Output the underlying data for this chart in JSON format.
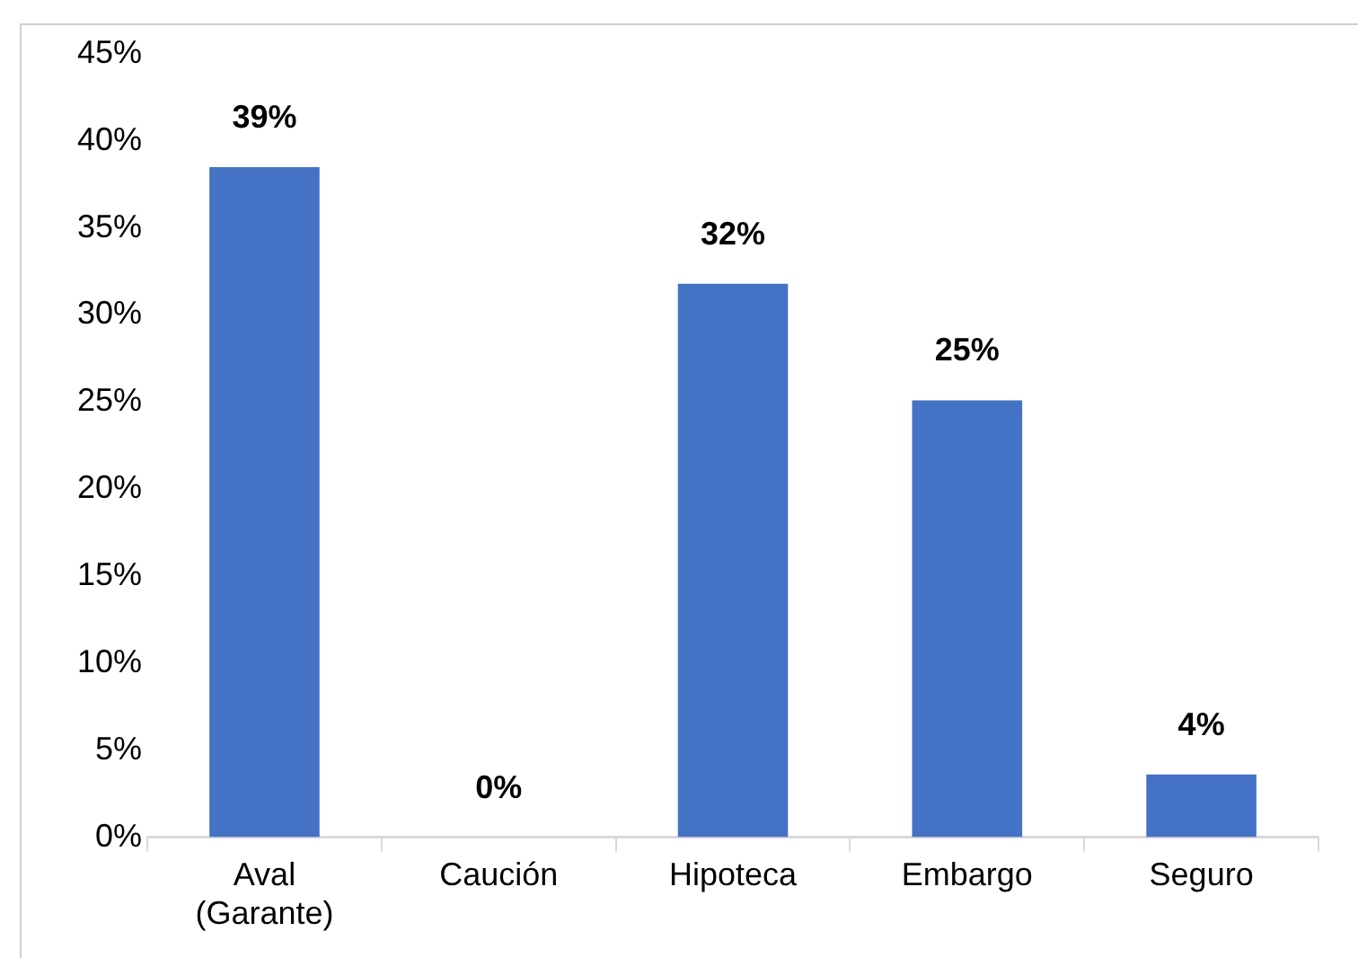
{
  "chart_data": {
    "type": "bar",
    "categories": [
      "Aval (Garante)",
      "Caución",
      "Hipoteca",
      "Embargo",
      "Seguro"
    ],
    "values": [
      38.5,
      0,
      31.8,
      25.1,
      3.6
    ],
    "value_labels": [
      "39%",
      "0%",
      "32%",
      "25%",
      "4%"
    ],
    "color": "#4472c4",
    "ylim": [
      0,
      45
    ],
    "yticks": [
      {
        "value": 0,
        "label": "0%"
      },
      {
        "value": 5,
        "label": "5%"
      },
      {
        "value": 10,
        "label": "10%"
      },
      {
        "value": 15,
        "label": "15%"
      },
      {
        "value": 20,
        "label": "20%"
      },
      {
        "value": 25,
        "label": "25%"
      },
      {
        "value": 30,
        "label": "30%"
      },
      {
        "value": 35,
        "label": "35%"
      },
      {
        "value": 40,
        "label": "40%"
      },
      {
        "value": 45,
        "label": "45%"
      }
    ],
    "grid": false,
    "legend": false
  }
}
